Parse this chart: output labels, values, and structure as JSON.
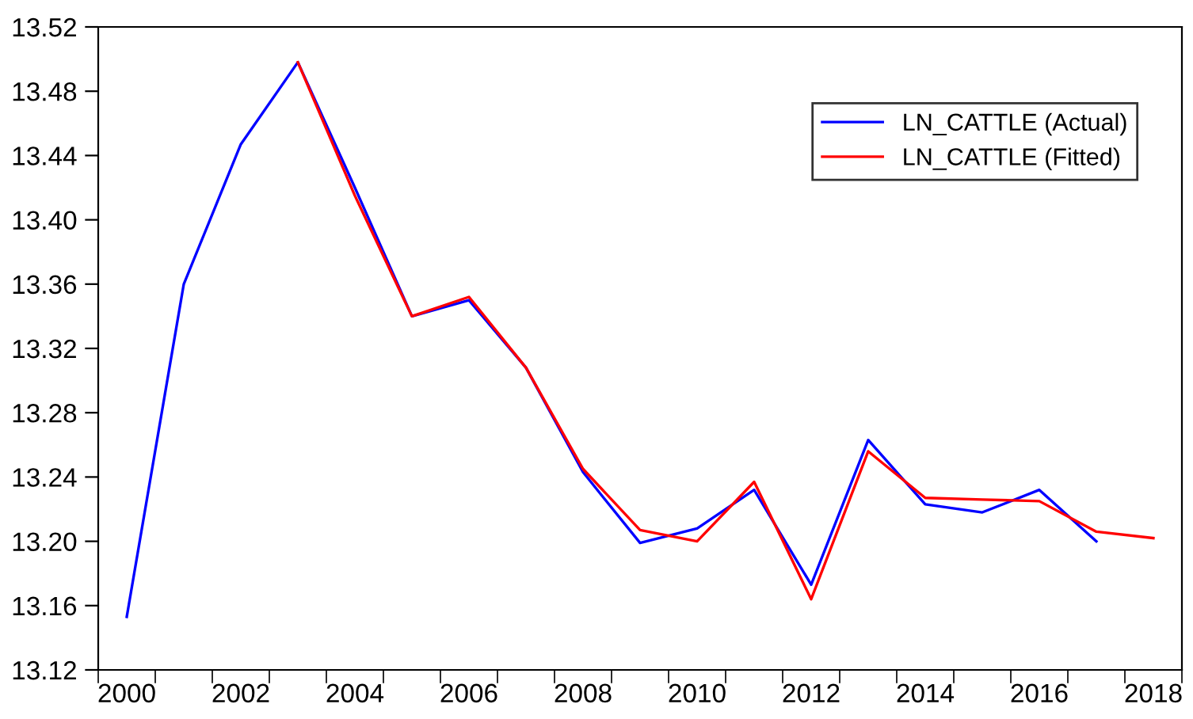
{
  "chart_data": {
    "type": "line",
    "categories": [
      "2000",
      null,
      "2002",
      null,
      "2004",
      null,
      "2006",
      null,
      "2008",
      null,
      "2010",
      null,
      "2012",
      null,
      "2014",
      null,
      "2016",
      null,
      "2018"
    ],
    "series": [
      {
        "name": "LN_CATTLE (Actual)",
        "color": "#0000ff",
        "values": [
          13.153,
          13.36,
          13.447,
          13.498,
          13.42,
          13.34,
          13.35,
          13.308,
          13.243,
          13.199,
          13.208,
          13.232,
          13.173,
          13.263,
          13.223,
          13.218,
          13.232,
          13.2,
          null
        ]
      },
      {
        "name": "LN_CATTLE (Fitted)",
        "color": "#ff0000",
        "values": [
          null,
          null,
          null,
          13.498,
          13.415,
          13.34,
          13.352,
          13.308,
          13.245,
          13.207,
          13.2,
          13.237,
          13.164,
          13.256,
          13.227,
          13.226,
          13.225,
          13.206,
          13.202
        ]
      }
    ],
    "ylim": [
      13.12,
      13.52
    ],
    "yticks": [
      {
        "value": 13.12,
        "label": "13.12"
      },
      13.16,
      {
        "value": 13.2,
        "label": "13.20"
      },
      13.24,
      13.28,
      13.32,
      13.36,
      {
        "value": 13.4,
        "label": "13.40"
      },
      13.44,
      13.48,
      13.52
    ],
    "grid": false,
    "legend": "top right",
    "marker": "none",
    "line_style": "solid"
  }
}
